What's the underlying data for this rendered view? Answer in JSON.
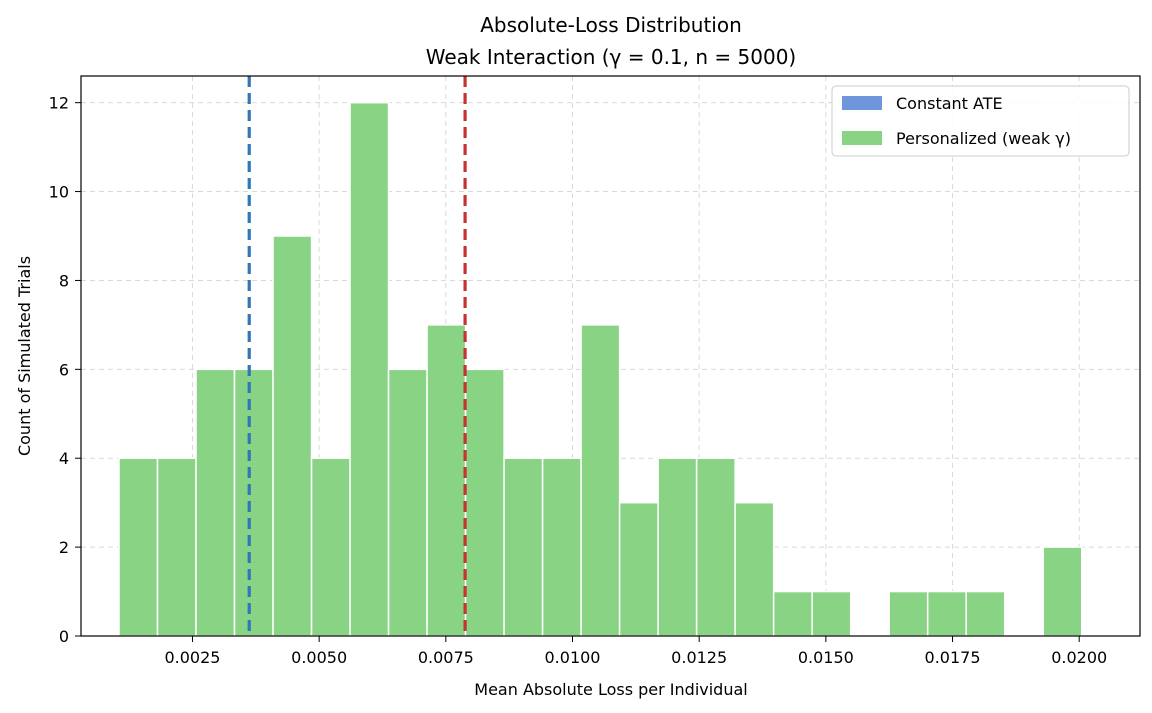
{
  "chart_data": {
    "type": "bar",
    "title": "Absolute-Loss Distribution",
    "subtitle": "Weak Interaction (γ = 0.1, n = 5000)",
    "xlabel": "Mean Absolute Loss per Individual",
    "ylabel": "Count of Simulated Trials",
    "xlim": [
      0.0003,
      0.0212
    ],
    "ylim": [
      0,
      12.6
    ],
    "xticks": [
      0.0025,
      0.005,
      0.0075,
      0.01,
      0.0125,
      0.015,
      0.0175,
      0.02
    ],
    "xtick_labels": [
      "0.0025",
      "0.0050",
      "0.0075",
      "0.0100",
      "0.0125",
      "0.0150",
      "0.0175",
      "0.0200"
    ],
    "yticks": [
      0,
      2,
      4,
      6,
      8,
      10,
      12
    ],
    "ytick_labels": [
      "0",
      "2",
      "4",
      "6",
      "8",
      "10",
      "12"
    ],
    "grid": true,
    "legend_position": "top-right",
    "bin_start": 0.00105,
    "bin_width": 0.00076,
    "series": [
      {
        "name": "Constant ATE",
        "color": "#6f95dc",
        "values": []
      },
      {
        "name": "Personalized (weak γ)",
        "color": "#89d385",
        "values": [
          4,
          4,
          6,
          6,
          9,
          4,
          12,
          6,
          7,
          6,
          4,
          4,
          7,
          3,
          4,
          4,
          3,
          1,
          1,
          0,
          1,
          1,
          1,
          0,
          2
        ]
      }
    ],
    "vlines": [
      {
        "name": "constant-ate-mean-line",
        "x": 0.00362,
        "color": "#2f77b6"
      },
      {
        "name": "personalized-mean-line",
        "x": 0.00788,
        "color": "#c43532"
      }
    ]
  }
}
